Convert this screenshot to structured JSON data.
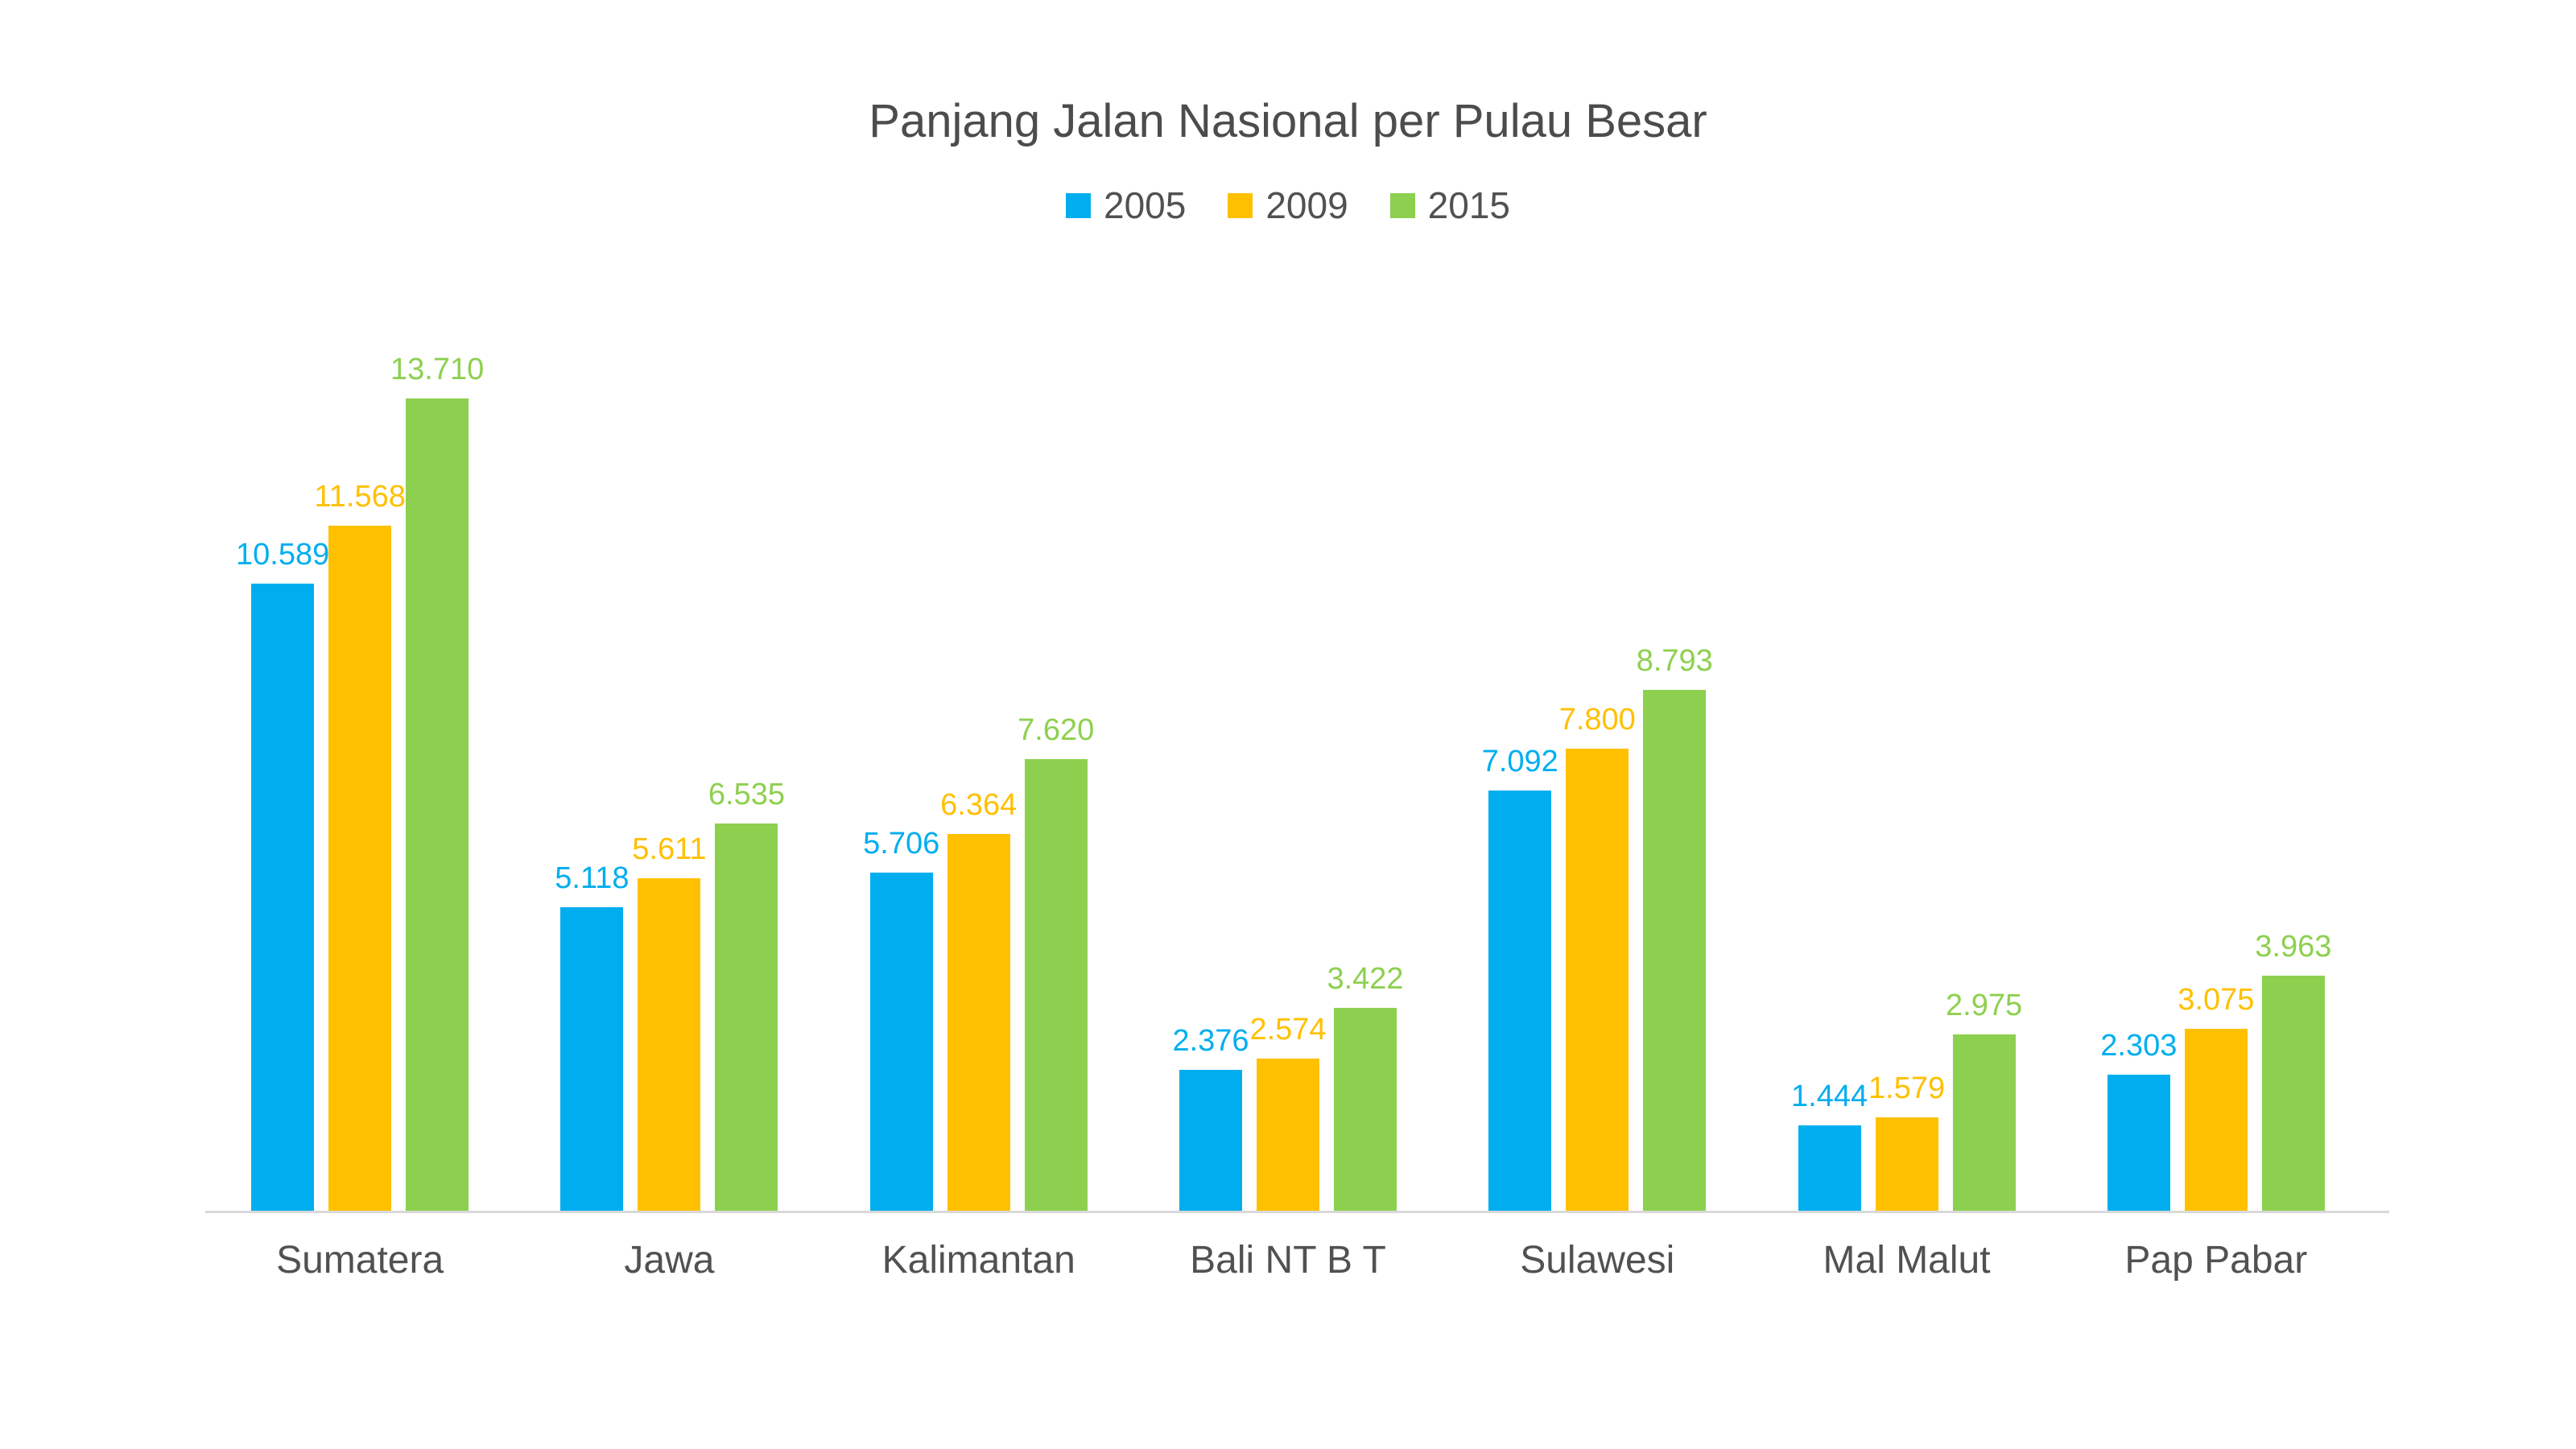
{
  "chart_data": {
    "type": "bar",
    "title": "Panjang Jalan Nasional per Pulau Besar",
    "categories": [
      "Sumatera",
      "Jawa",
      "Kalimantan",
      "Bali NT B T",
      "Sulawesi",
      "Mal Malut",
      "Pap Pabar"
    ],
    "series": [
      {
        "name": "2005",
        "color": "#00AEEF",
        "values": [
          10589,
          5118,
          5706,
          2376,
          7092,
          1444,
          2303
        ],
        "labels": [
          "10.589",
          "5.118",
          "5.706",
          "2.376",
          "7.092",
          "1.444",
          "2.303"
        ]
      },
      {
        "name": "2009",
        "color": "#FFC000",
        "values": [
          11568,
          5611,
          6364,
          2574,
          7800,
          1579,
          3075
        ],
        "labels": [
          "11.568",
          "5.611",
          "6.364",
          "2.574",
          "7.800",
          "1.579",
          "3.075"
        ]
      },
      {
        "name": "2015",
        "color": "#8DD04F",
        "values": [
          13710,
          6535,
          7620,
          3422,
          8793,
          2975,
          3963
        ],
        "labels": [
          "13.710",
          "6.535",
          "7.620",
          "3.422",
          "8.793",
          "2.975",
          "3.963"
        ]
      }
    ],
    "xlabel": "",
    "ylabel": "",
    "ylim": [
      0,
      14000
    ],
    "grid": false,
    "legend_position": "top",
    "data_labels": true,
    "number_format": "thousands-dot",
    "axis_line_color": "#D9D9D9",
    "title_color": "#4C4C4C",
    "label_text_color": "#515151"
  }
}
